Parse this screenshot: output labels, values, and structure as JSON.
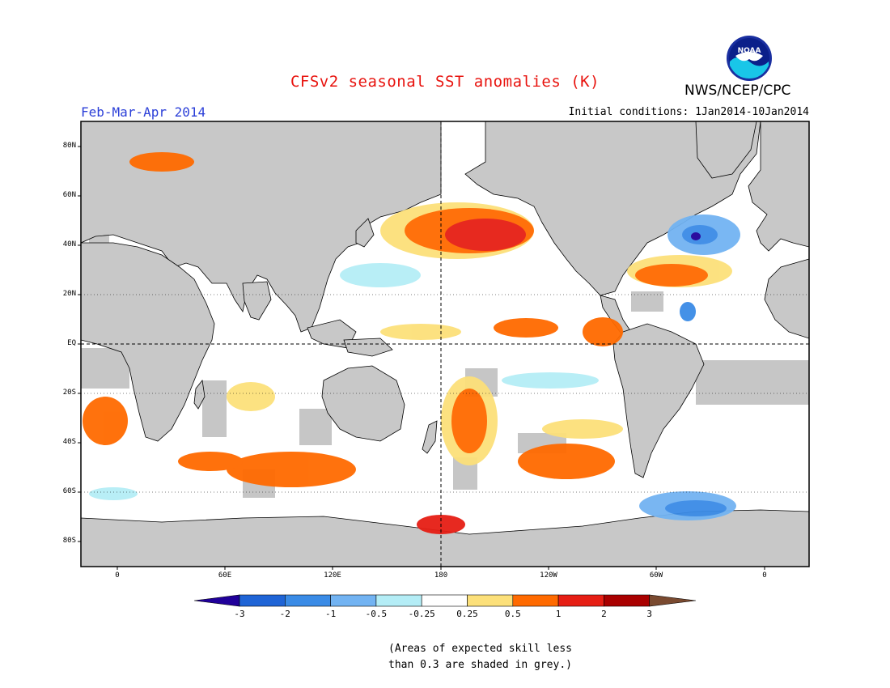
{
  "title": "CFSv2 seasonal SST anomalies (K)",
  "period": "Feb-Mar-Apr 2014",
  "initial_conditions": "Initial conditions: 1Jan2014-10Jan2014",
  "agency": "NWS/NCEP/CPC",
  "logo_text": "NOAA",
  "lat_labels": [
    "80N",
    "60N",
    "40N",
    "20N",
    "EQ",
    "20S",
    "40S",
    "60S",
    "80S"
  ],
  "lon_labels": [
    "0",
    "60E",
    "120E",
    "180",
    "120W",
    "60W",
    "0"
  ],
  "colorbar": {
    "labels": [
      "-3",
      "-2",
      "-1",
      "-0.5",
      "-0.25",
      "0.25",
      "0.5",
      "1",
      "2",
      "3"
    ],
    "colors": [
      "#20009a",
      "#1f64d6",
      "#3a8be6",
      "#72b3f2",
      "#b4edf6",
      "#ffffff",
      "#fce07a",
      "#ff6a00",
      "#e61e14",
      "#a90000",
      "#7a4a30"
    ]
  },
  "colors": {
    "land": "#c8c8c8",
    "grey_skill": "#c6c6c6",
    "ocean": "#ffffff",
    "title": "#e8130e",
    "period": "#2b3fd8"
  },
  "note_lines": [
    "(Areas of expected skill less",
    "than 0.3 are shaded in grey.)"
  ]
}
